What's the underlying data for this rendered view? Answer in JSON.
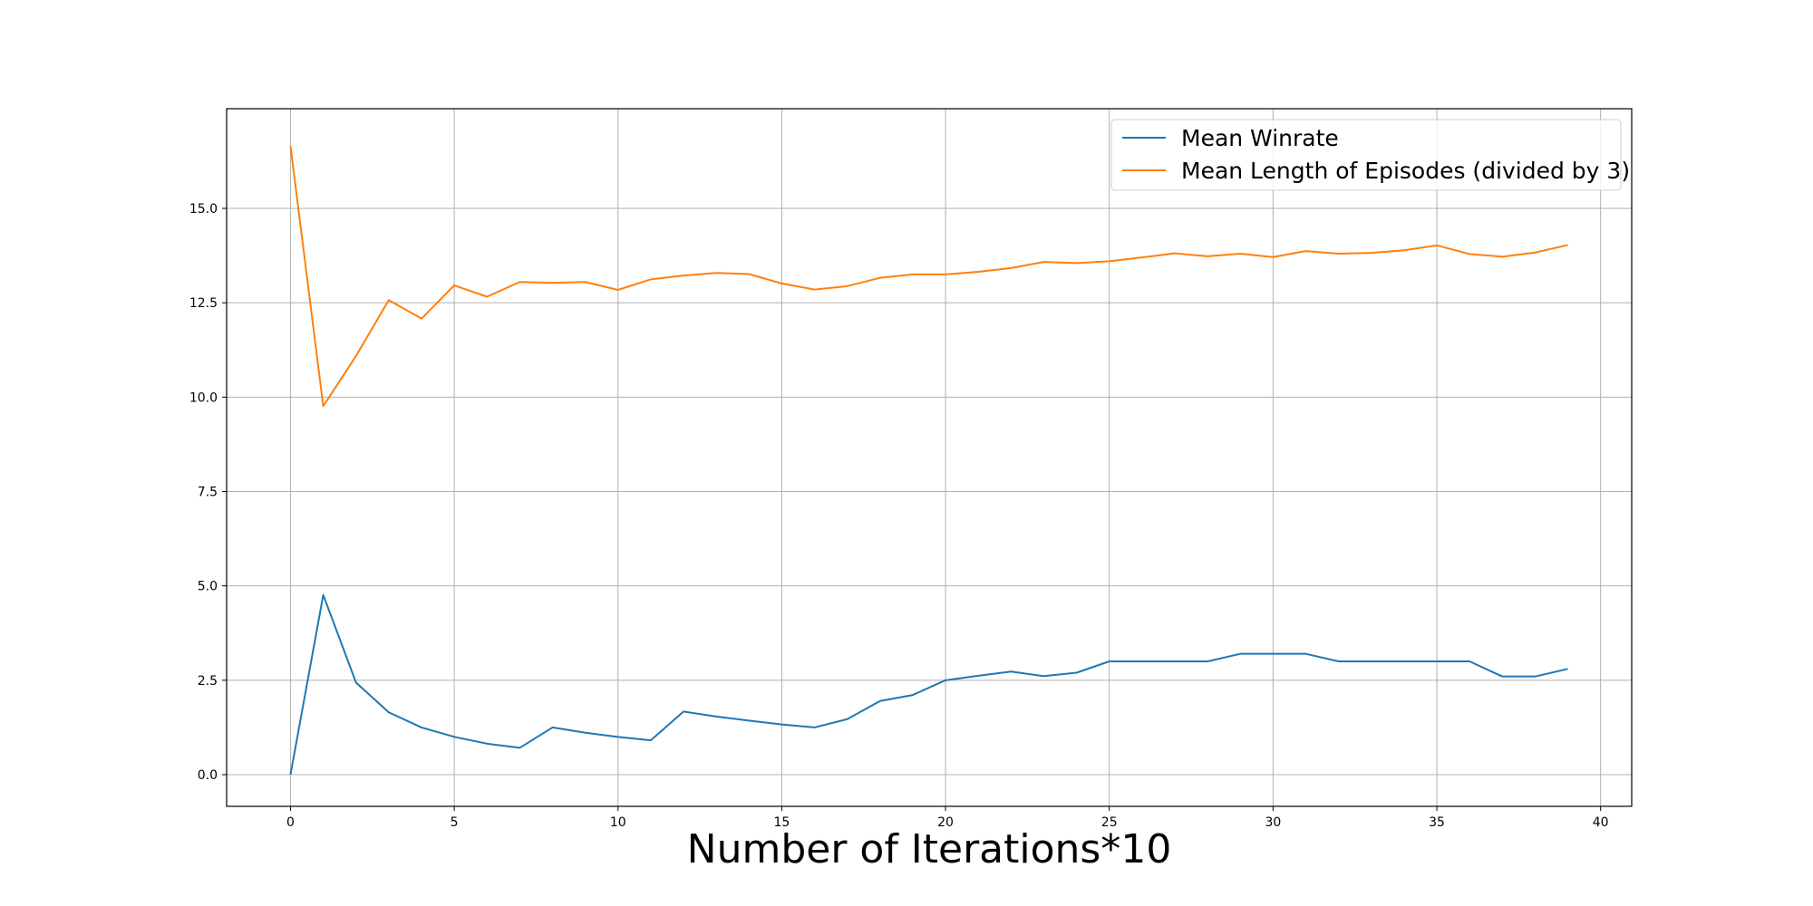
{
  "chart_data": {
    "type": "line",
    "title": "",
    "xlabel": "Number of Iterations*10",
    "ylabel": "",
    "xlim": [
      -1.95,
      40.95
    ],
    "ylim": [
      -0.84,
      17.64
    ],
    "x_ticks": [
      0,
      5,
      10,
      15,
      20,
      25,
      30,
      35,
      40
    ],
    "x_tick_labels": [
      "0",
      "5",
      "10",
      "15",
      "20",
      "25",
      "30",
      "35",
      "40"
    ],
    "y_ticks": [
      0,
      2.5,
      5,
      7.5,
      10,
      12.5,
      15
    ],
    "y_tick_labels": [
      "0.0",
      "2.5",
      "5.0",
      "7.5",
      "10.0",
      "12.5",
      "15.0"
    ],
    "grid": true,
    "legend": "top-right",
    "x": [
      0,
      1,
      2,
      3,
      4,
      5,
      6,
      7,
      8,
      9,
      10,
      11,
      12,
      13,
      14,
      15,
      16,
      17,
      18,
      19,
      20,
      21,
      22,
      23,
      24,
      25,
      26,
      27,
      28,
      29,
      30,
      31,
      32,
      33,
      34,
      35,
      36,
      37,
      38,
      39
    ],
    "series": [
      {
        "name": "Mean Winrate",
        "color": "#1f77b4",
        "values": [
          0.0,
          4.76,
          2.44,
          1.65,
          1.25,
          1.0,
          0.82,
          0.71,
          1.25,
          1.11,
          1.0,
          0.91,
          1.67,
          1.54,
          1.43,
          1.33,
          1.25,
          1.47,
          1.95,
          2.11,
          2.5,
          2.62,
          2.73,
          2.61,
          2.7,
          3.0,
          3.0,
          3.0,
          3.0,
          3.2,
          3.2,
          3.2,
          3.0,
          3.0,
          3.0,
          3.0,
          3.0,
          2.6,
          2.6,
          2.8
        ]
      },
      {
        "name": "Mean Length of Episodes (divided by 3)",
        "color": "#ff7f0e",
        "values": [
          16.65,
          9.76,
          11.09,
          12.57,
          12.08,
          12.96,
          12.66,
          13.05,
          13.03,
          13.05,
          12.84,
          13.12,
          13.22,
          13.29,
          13.26,
          13.01,
          12.85,
          12.94,
          13.16,
          13.25,
          13.25,
          13.32,
          13.42,
          13.58,
          13.55,
          13.6,
          13.7,
          13.81,
          13.73,
          13.8,
          13.71,
          13.87,
          13.8,
          13.82,
          13.89,
          14.02,
          13.79,
          13.72,
          13.83,
          14.03
        ]
      }
    ]
  }
}
